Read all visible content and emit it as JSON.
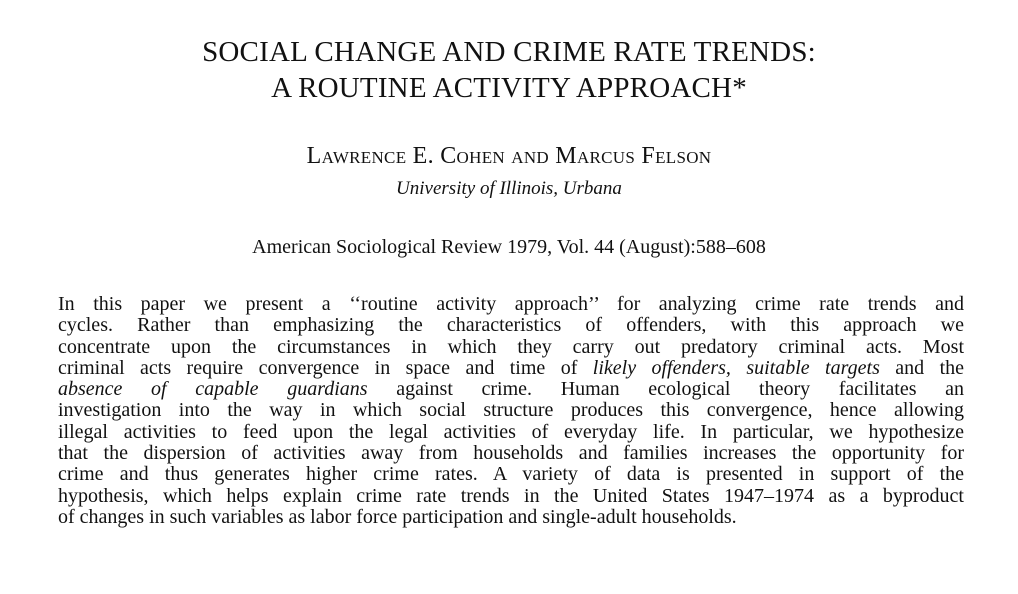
{
  "paper": {
    "title_lines": [
      "SOCIAL CHANGE AND CRIME RATE TRENDS:",
      "A ROUTINE ACTIVITY APPROACH*"
    ],
    "authors": "Lawrence E. Cohen and Marcus Felson",
    "affiliation": "University of Illinois, Urbana",
    "citation": "American Sociological Review 1979, Vol. 44 (August):588–608",
    "abstract_lines": [
      [
        {
          "t": "In this paper we present a ‘‘routine activity approach’’ for analyzing crime rate trends and"
        }
      ],
      [
        {
          "t": "cycles. Rather than emphasizing the characteristics of offenders, with this approach we"
        }
      ],
      [
        {
          "t": "concentrate upon the circumstances in which they carry out predatory criminal acts. Most"
        }
      ],
      [
        {
          "t": "criminal acts require convergence in space and time of "
        },
        {
          "t": "likely offenders, suitable targets",
          "i": true
        },
        {
          "t": " and the"
        }
      ],
      [
        {
          "t": "absence of capable guardians",
          "i": true
        },
        {
          "t": " against crime. Human ecological theory facilitates an"
        }
      ],
      [
        {
          "t": "investigation into the way in which social structure produces this convergence, hence allowing"
        }
      ],
      [
        {
          "t": "illegal activities to feed upon the legal activities of everyday life. In particular, we hypothesize"
        }
      ],
      [
        {
          "t": "that the dispersion of activities away from households and families increases the opportunity for"
        }
      ],
      [
        {
          "t": "crime and thus generates higher crime rates. A variety of data is presented in support of the"
        }
      ],
      [
        {
          "t": "hypothesis, which helps explain crime rate trends in the United States 1947–1974 as a byproduct"
        }
      ],
      [
        {
          "t": "of changes in such variables as labor force participation and single-adult households."
        }
      ]
    ]
  }
}
